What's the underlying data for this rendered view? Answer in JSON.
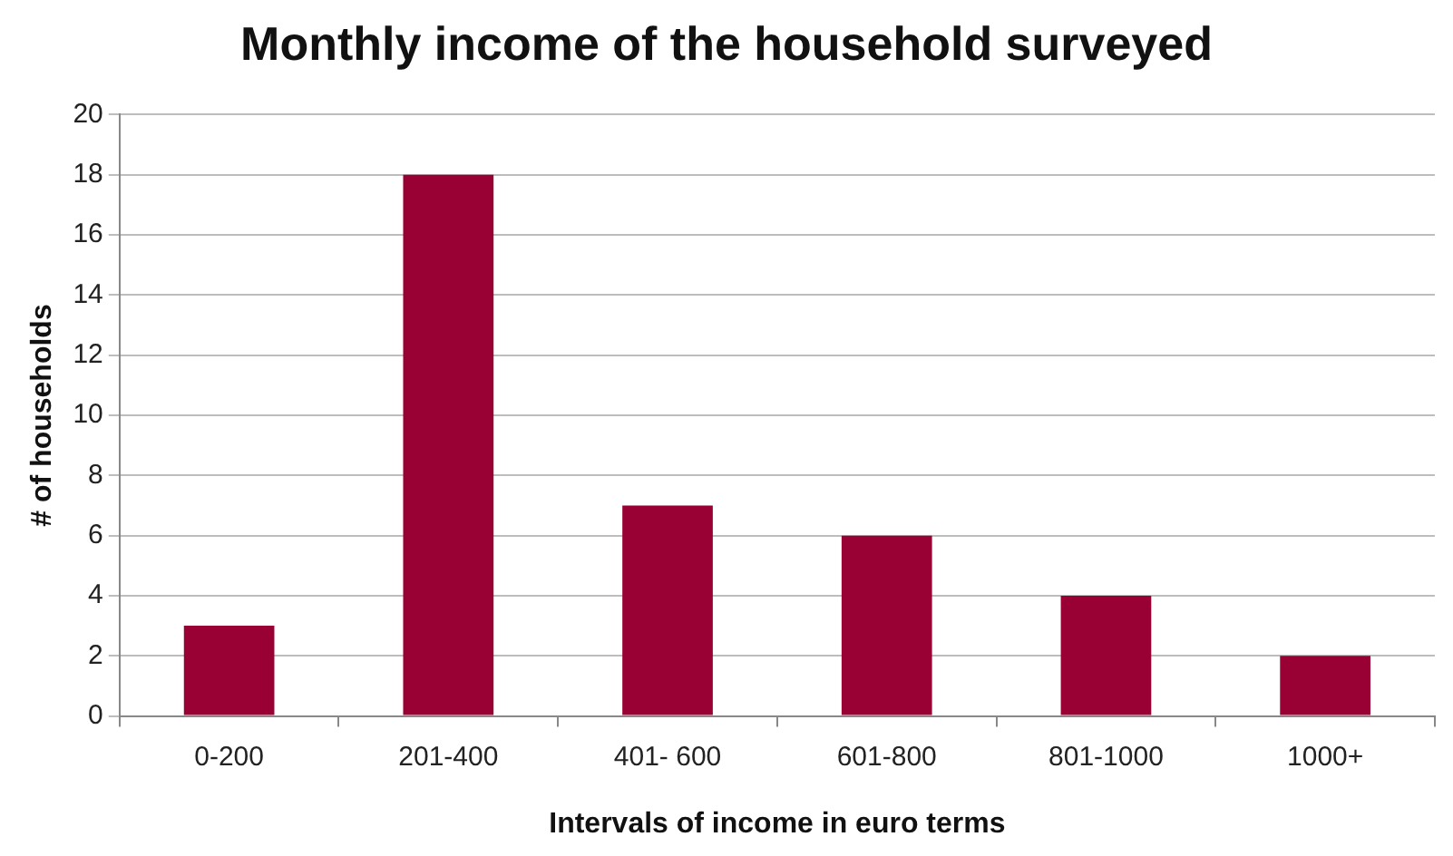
{
  "chart_data": {
    "type": "bar",
    "title": "Monthly income of the household surveyed",
    "xlabel": "Intervals of income in euro terms",
    "ylabel": "# of households",
    "categories": [
      "0-200",
      "201-400",
      "401- 600",
      "601-800",
      "801-1000",
      "1000+"
    ],
    "values": [
      3,
      18,
      7,
      6,
      4,
      2
    ],
    "color": "#990033",
    "ylim": [
      0,
      20
    ],
    "yticks": [
      0,
      2,
      4,
      6,
      8,
      10,
      12,
      14,
      16,
      18,
      20
    ],
    "grid": "y",
    "legend": false
  }
}
